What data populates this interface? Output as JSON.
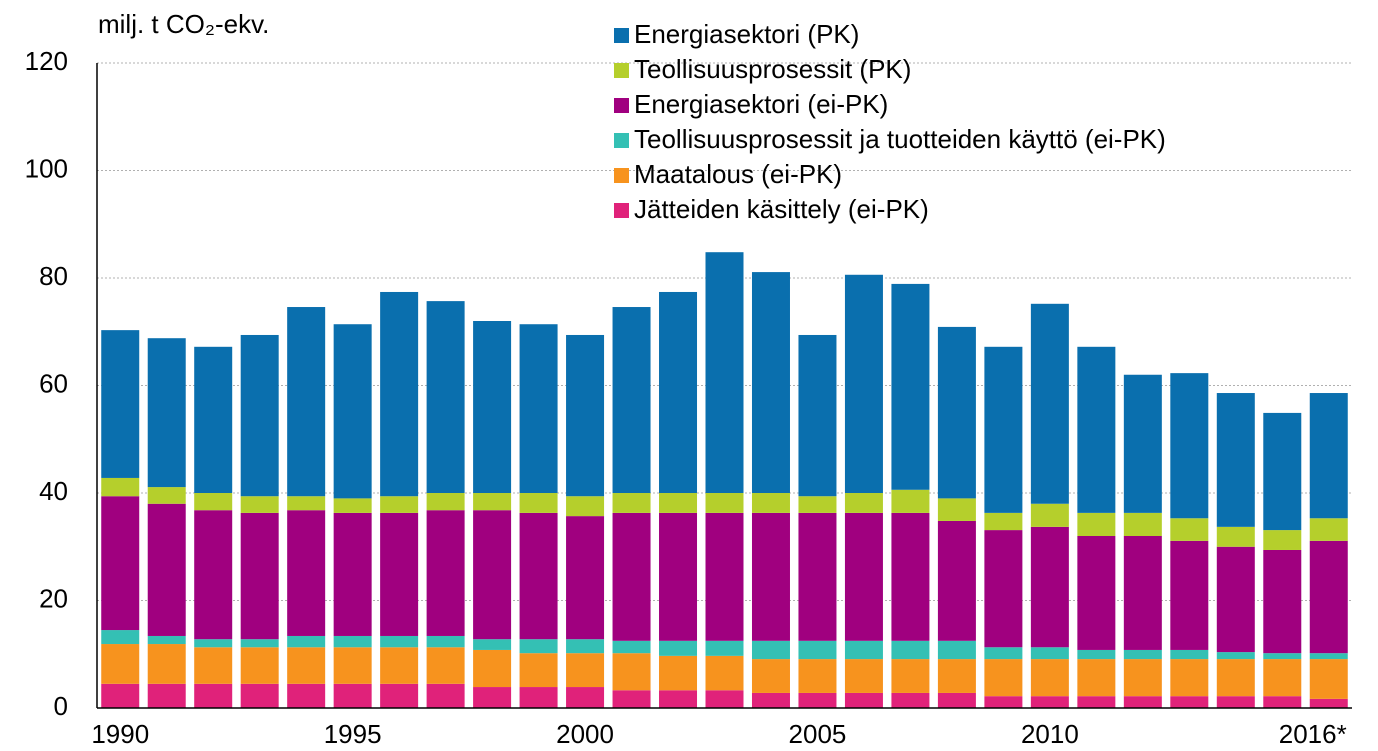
{
  "chart_data": {
    "type": "stacked_bar",
    "y_label": "milj. t CO₂-ekv.",
    "categories": [
      "1990",
      null,
      null,
      null,
      null,
      "1995",
      null,
      null,
      null,
      null,
      "2000",
      null,
      null,
      null,
      null,
      "2005",
      null,
      null,
      null,
      null,
      "2010",
      null,
      null,
      null,
      null,
      null,
      "2016*"
    ],
    "ylim": [
      0,
      120
    ],
    "yticks": [
      0,
      20,
      40,
      60,
      80,
      100,
      120
    ],
    "grid": true,
    "legend": "top-right",
    "series": [
      {
        "name": "Energiasektori (PK)",
        "color": "#0a6fae",
        "values": [
          27.5,
          27.7,
          27.2,
          30.0,
          35.2,
          32.4,
          38.0,
          35.7,
          32.0,
          31.4,
          30.0,
          34.6,
          37.4,
          44.8,
          41.1,
          30.0,
          40.6,
          38.3,
          31.9,
          30.9,
          37.2,
          30.9,
          25.7,
          27.0,
          24.9,
          21.8,
          23.3
        ]
      },
      {
        "name": "Teollisuusprosessit (PK)",
        "color": "#b5cf2c",
        "values": [
          3.4,
          3.1,
          3.2,
          3.1,
          2.6,
          2.7,
          3.1,
          3.2,
          3.2,
          3.7,
          3.7,
          3.7,
          3.7,
          3.7,
          3.7,
          3.1,
          3.7,
          4.3,
          4.2,
          3.2,
          4.3,
          4.3,
          4.3,
          4.2,
          3.7,
          3.7,
          4.2
        ]
      },
      {
        "name": "Energiasektori (ei-PK)",
        "color": "#a0007f",
        "values": [
          24.9,
          24.6,
          24.0,
          23.5,
          23.4,
          22.9,
          22.9,
          23.4,
          24.0,
          23.5,
          22.9,
          23.8,
          23.8,
          23.8,
          23.8,
          23.8,
          23.8,
          23.8,
          22.3,
          21.8,
          22.4,
          21.2,
          21.2,
          20.3,
          19.6,
          19.2,
          20.9
        ]
      },
      {
        "name": "Teollisuusprosessit ja tuotteiden käyttö (ei-PK)",
        "color": "#34c0b4",
        "values": [
          2.6,
          1.5,
          1.5,
          1.5,
          2.1,
          2.1,
          2.1,
          2.1,
          2.0,
          2.6,
          2.6,
          2.3,
          2.8,
          2.8,
          3.4,
          3.4,
          3.4,
          3.4,
          3.4,
          2.2,
          2.2,
          1.7,
          1.7,
          1.7,
          1.3,
          1.1,
          1.1
        ]
      },
      {
        "name": "Maatalous (ei-PK)",
        "color": "#f7931e",
        "values": [
          7.4,
          7.4,
          6.8,
          6.8,
          6.8,
          6.8,
          6.8,
          6.8,
          6.9,
          6.3,
          6.3,
          6.9,
          6.4,
          6.4,
          6.3,
          6.3,
          6.3,
          6.3,
          6.3,
          6.9,
          6.9,
          6.9,
          6.9,
          6.9,
          6.9,
          6.9,
          7.4
        ]
      },
      {
        "name": "Jätteiden käsittely (ei-PK)",
        "color": "#e0227a",
        "values": [
          4.5,
          4.5,
          4.5,
          4.5,
          4.5,
          4.5,
          4.5,
          4.5,
          3.9,
          3.9,
          3.9,
          3.3,
          3.3,
          3.3,
          2.8,
          2.8,
          2.8,
          2.8,
          2.8,
          2.2,
          2.2,
          2.2,
          2.2,
          2.2,
          2.2,
          2.2,
          1.7
        ]
      }
    ]
  }
}
